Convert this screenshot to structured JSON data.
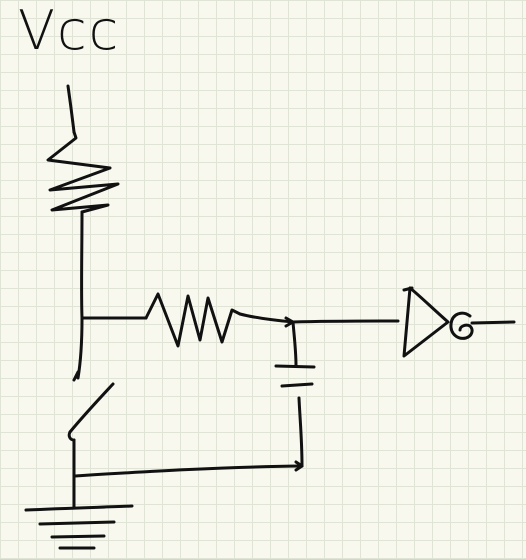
{
  "diagram": {
    "vcc_label": "Vcc",
    "ink_color": "#111111",
    "grid_color": "#dfe4d7",
    "background_color": "#f8f8ef"
  }
}
